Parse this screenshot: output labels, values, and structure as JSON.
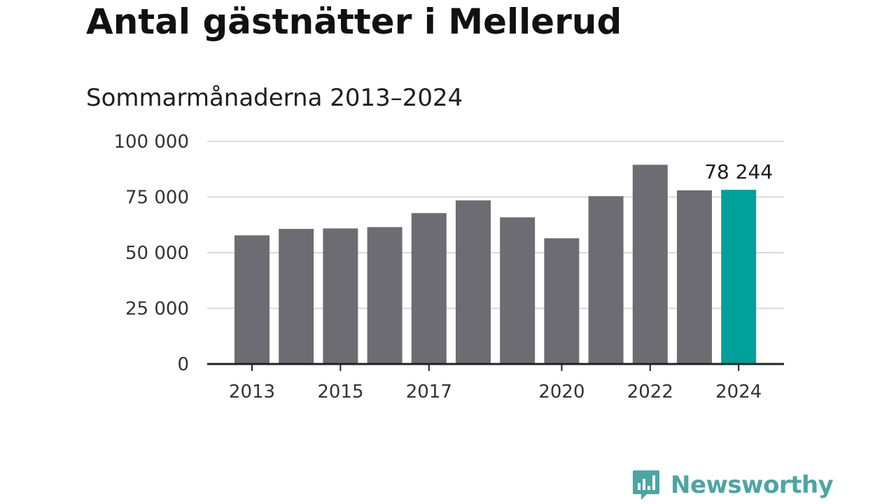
{
  "title": "Antal gästnätter i Mellerud",
  "subtitle": "Sommarmånaderna 2013–2024",
  "brand": "Newsworthy",
  "colors": {
    "bar": "#6d6c72",
    "highlight": "#00a19a",
    "grid": "#d9d9d9",
    "axis": "#222222",
    "brand": "#4aa6a4"
  },
  "chart_data": {
    "type": "bar",
    "categories": [
      "2013",
      "2014",
      "2015",
      "2016",
      "2017",
      "2018",
      "2019",
      "2020",
      "2021",
      "2022",
      "2023",
      "2024"
    ],
    "values": [
      57800,
      60700,
      60900,
      61500,
      67800,
      73500,
      65900,
      56500,
      75400,
      89500,
      78000,
      78244
    ],
    "highlight_index": 11,
    "highlight_label": "78 244",
    "ylim": [
      0,
      100000
    ],
    "yticks": [
      0,
      25000,
      50000,
      75000,
      100000
    ],
    "ytick_labels": [
      "0",
      "25 000",
      "50 000",
      "75 000",
      "100 000"
    ],
    "xtick_labels": [
      "2013",
      "2015",
      "2017",
      "2020",
      "2022",
      "2024"
    ],
    "xtick_indices": [
      0,
      2,
      4,
      7,
      9,
      11
    ],
    "grid": true,
    "legend": "none"
  }
}
